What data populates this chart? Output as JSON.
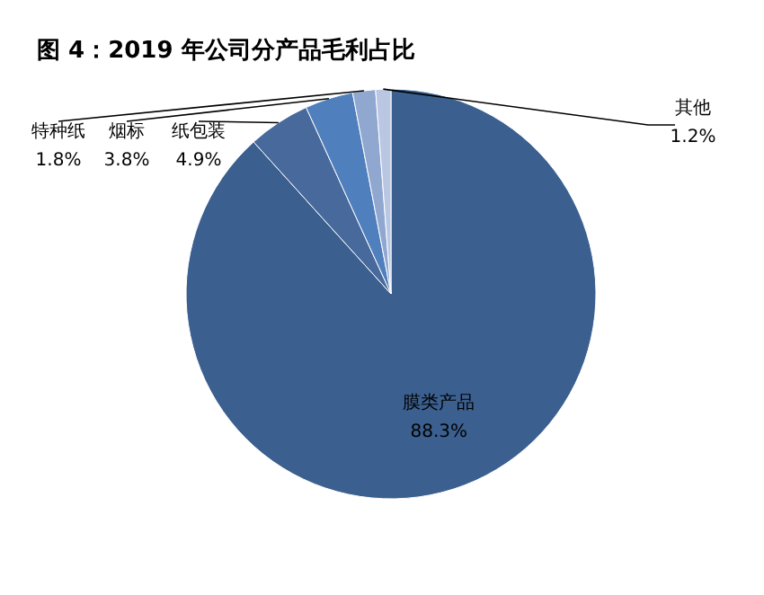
{
  "chart_data": {
    "type": "pie",
    "title": "图 4：2019 年公司分产品毛利占比",
    "categories": [
      "膜类产品",
      "纸包装",
      "烟标",
      "特种纸",
      "其他"
    ],
    "values": [
      88.3,
      4.9,
      3.8,
      1.8,
      1.2
    ],
    "value_labels": [
      "88.3%",
      "4.9%",
      "3.8%",
      "1.8%",
      "1.2%"
    ],
    "colors": [
      "#3b5f8e",
      "#47699c",
      "#4f7fbd",
      "#90a8d0",
      "#b9c7e3"
    ]
  }
}
